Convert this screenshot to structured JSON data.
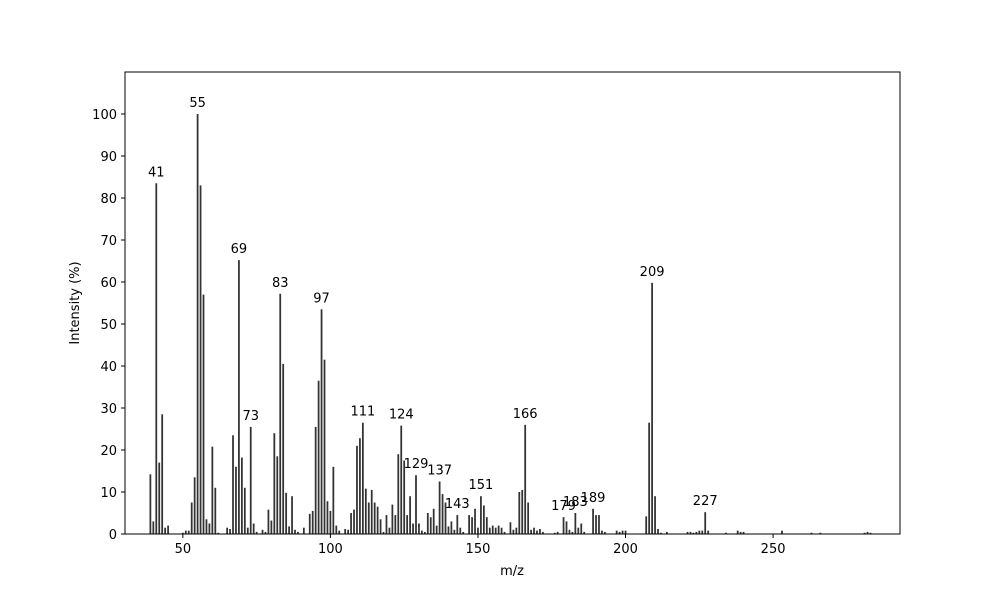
{
  "chart_data": {
    "type": "stem",
    "xlabel": "m/z",
    "ylabel": "Intensity (%)",
    "x": [
      39,
      40,
      41,
      42,
      43,
      44,
      45,
      50,
      51,
      52,
      53,
      54,
      55,
      56,
      57,
      58,
      59,
      60,
      61,
      62,
      65,
      66,
      67,
      68,
      69,
      70,
      71,
      72,
      73,
      74,
      75,
      77,
      78,
      79,
      80,
      81,
      82,
      83,
      84,
      85,
      86,
      87,
      88,
      89,
      91,
      93,
      94,
      95,
      96,
      97,
      98,
      99,
      100,
      101,
      102,
      103,
      105,
      106,
      107,
      108,
      109,
      110,
      111,
      112,
      113,
      114,
      115,
      116,
      117,
      118,
      119,
      120,
      121,
      122,
      123,
      124,
      125,
      126,
      127,
      128,
      129,
      130,
      131,
      132,
      133,
      134,
      135,
      136,
      137,
      138,
      139,
      140,
      141,
      142,
      143,
      144,
      145,
      147,
      148,
      149,
      150,
      151,
      152,
      153,
      154,
      155,
      156,
      157,
      158,
      159,
      161,
      162,
      163,
      164,
      165,
      166,
      167,
      168,
      169,
      170,
      171,
      172,
      176,
      177,
      179,
      180,
      181,
      182,
      183,
      184,
      185,
      186,
      189,
      190,
      191,
      192,
      193,
      197,
      198,
      199,
      200,
      207,
      208,
      209,
      210,
      211,
      212,
      214,
      221,
      222,
      223,
      224,
      225,
      226,
      227,
      228,
      234,
      238,
      239,
      240,
      253,
      263,
      266,
      281,
      282,
      283
    ],
    "values": [
      14.2,
      3,
      83.5,
      17,
      28.5,
      1.5,
      2,
      0.3,
      0.8,
      0.8,
      7.5,
      13.5,
      100,
      83,
      57,
      3.5,
      2.5,
      20.8,
      11,
      0.3,
      1.5,
      1.2,
      23.5,
      16,
      65.2,
      18.2,
      11,
      1.5,
      25.5,
      2.5,
      0.5,
      1,
      0.5,
      5.8,
      3.2,
      24,
      18.5,
      57.2,
      40.5,
      9.8,
      1.8,
      9,
      1,
      0.5,
      1.5,
      4.8,
      5.5,
      25.5,
      36.5,
      53.5,
      41.5,
      7.8,
      5.5,
      16,
      2,
      0.8,
      1.2,
      1,
      5,
      5.8,
      21,
      22.8,
      26.5,
      10.8,
      7.5,
      10.5,
      7.5,
      6.5,
      3.5,
      0.5,
      4.5,
      1.5,
      7,
      4.5,
      19,
      25.8,
      17.5,
      4.5,
      9,
      2.5,
      14,
      2.5,
      0.8,
      0.5,
      5,
      4,
      6,
      2,
      12.5,
      9.5,
      7.5,
      1.8,
      3,
      1,
      4.5,
      1.5,
      0.5,
      4.5,
      4,
      6,
      1.5,
      9,
      6.8,
      4,
      1.5,
      2,
      1.5,
      2,
      1.5,
      0.5,
      2.8,
      1,
      1.5,
      10,
      10.5,
      26,
      7.5,
      1,
      1.5,
      0.8,
      1.2,
      0.5,
      0.3,
      0.5,
      4,
      3,
      1,
      0.5,
      5,
      1.5,
      2.5,
      0.5,
      6,
      4.5,
      4.5,
      0.8,
      0.5,
      0.8,
      0.5,
      0.8,
      0.8,
      4.2,
      26.5,
      59.8,
      9,
      1.2,
      0.3,
      0.5,
      0.5,
      0.5,
      0.3,
      0.5,
      0.8,
      0.8,
      5.2,
      0.8,
      0.3,
      0.8,
      0.5,
      0.5,
      0.8,
      0.3,
      0.3,
      0.3,
      0.5,
      0.3
    ],
    "peak_labels": [
      41,
      55,
      69,
      73,
      83,
      97,
      111,
      124,
      129,
      137,
      143,
      151,
      166,
      179,
      183,
      189,
      209,
      227
    ],
    "color": "#333333",
    "xlim": [
      30.4,
      293
    ],
    "xticks": [
      50,
      100,
      150,
      200,
      250
    ],
    "ylim": [
      0,
      110
    ],
    "yticks": [
      0,
      10,
      20,
      30,
      40,
      50,
      60,
      70,
      80,
      90,
      100
    ],
    "grid": false
  }
}
